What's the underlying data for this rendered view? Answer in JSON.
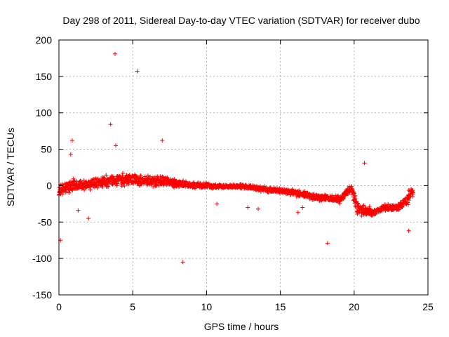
{
  "chart_data": {
    "type": "scatter",
    "title": "Day 298 of 2011, Sidereal Day-to-day VTEC variation (SDTVAR) for receiver dubo",
    "xlabel": "GPS time / hours",
    "ylabel": "SDTVAR / TECUs",
    "xlim": [
      0,
      25
    ],
    "ylim": [
      -150,
      200
    ],
    "xticks": [
      0,
      5,
      10,
      15,
      20,
      25
    ],
    "yticks": [
      -150,
      -100,
      -50,
      0,
      50,
      100,
      150,
      200
    ],
    "xtick_labels": [
      "0",
      "5",
      "10",
      "15",
      "20",
      "25"
    ],
    "ytick_labels": [
      "-150",
      "-100",
      "-50",
      "0",
      "50",
      "100",
      "150",
      "200"
    ],
    "grid": true,
    "marker": "+",
    "color": "#ff0000",
    "series": [
      {
        "name": "SDTVAR",
        "trend": [
          [
            0.0,
            -5,
            12
          ],
          [
            0.5,
            -3,
            10
          ],
          [
            1.0,
            0,
            10
          ],
          [
            1.5,
            2,
            9
          ],
          [
            2.0,
            3,
            9
          ],
          [
            2.5,
            4,
            9
          ],
          [
            3.0,
            5,
            9
          ],
          [
            3.5,
            7,
            9
          ],
          [
            4.0,
            8,
            9
          ],
          [
            4.5,
            9,
            10
          ],
          [
            5.0,
            9,
            9
          ],
          [
            5.5,
            7,
            8
          ],
          [
            6.0,
            6,
            8
          ],
          [
            6.5,
            6,
            8
          ],
          [
            7.0,
            7,
            9
          ],
          [
            7.5,
            5,
            8
          ],
          [
            8.0,
            3,
            6
          ],
          [
            8.5,
            2,
            5
          ],
          [
            9.0,
            1,
            5
          ],
          [
            9.5,
            0,
            4
          ],
          [
            10.0,
            0,
            4
          ],
          [
            10.5,
            -1,
            3
          ],
          [
            11.0,
            -1,
            3
          ],
          [
            11.5,
            -1,
            3
          ],
          [
            12.0,
            -1,
            3
          ],
          [
            12.5,
            -1,
            4
          ],
          [
            13.0,
            -2,
            4
          ],
          [
            13.5,
            -4,
            4
          ],
          [
            14.0,
            -5,
            4
          ],
          [
            14.5,
            -6,
            4
          ],
          [
            15.0,
            -7,
            4
          ],
          [
            15.5,
            -8,
            4
          ],
          [
            16.0,
            -10,
            5
          ],
          [
            16.5,
            -12,
            5
          ],
          [
            17.0,
            -14,
            5
          ],
          [
            17.5,
            -16,
            5
          ],
          [
            18.0,
            -17,
            5
          ],
          [
            18.5,
            -18,
            5
          ],
          [
            19.0,
            -19,
            6
          ],
          [
            19.5,
            -10,
            8
          ],
          [
            19.8,
            -3,
            6
          ],
          [
            20.2,
            -30,
            12
          ],
          [
            20.5,
            -35,
            8
          ],
          [
            21.0,
            -35,
            8
          ],
          [
            21.2,
            -38,
            6
          ],
          [
            22.0,
            -30,
            6
          ],
          [
            22.5,
            -30,
            6
          ],
          [
            23.0,
            -30,
            6
          ],
          [
            23.5,
            -22,
            10
          ],
          [
            24.0,
            -5,
            10
          ]
        ],
        "outliers": [
          [
            0.1,
            -75
          ],
          [
            0.8,
            43
          ],
          [
            0.9,
            62
          ],
          [
            1.3,
            -34
          ],
          [
            2.0,
            -45
          ],
          [
            3.5,
            84
          ],
          [
            3.8,
            181
          ],
          [
            3.85,
            55
          ],
          [
            5.3,
            157
          ],
          [
            7.0,
            62
          ],
          [
            8.4,
            -105
          ],
          [
            12.8,
            -30
          ],
          [
            13.5,
            -32
          ],
          [
            18.2,
            -79
          ],
          [
            20.7,
            31
          ],
          [
            23.7,
            -62
          ],
          [
            16.2,
            -37
          ],
          [
            16.5,
            -30
          ],
          [
            10.7,
            -25
          ]
        ]
      }
    ]
  }
}
